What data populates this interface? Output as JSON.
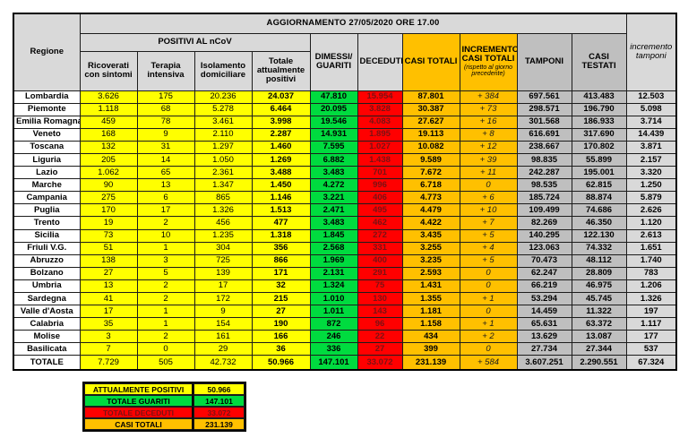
{
  "title": "AGGIORNAMENTO 27/05/2020 ORE 17.00",
  "table": {
    "header": {
      "region": "Regione",
      "positivi_group": "POSITIVI AL nCoV",
      "ricoverati": "Ricoverati con sintomi",
      "terapia": "Terapia intensiva",
      "isolamento": "Isolamento domiciliare",
      "totale_positivi": "Totale attualmente positivi",
      "dimessi": "DIMESSI/ GUARITI",
      "deceduti": "DECEDUTI",
      "casi_totali": "CASI TOTALI",
      "incremento_casi": "INCREMENTO CASI TOTALI",
      "incremento_casi_sub": "(rispetto al giorno precedente)",
      "tamponi": "TAMPONI",
      "casi_testati": "CASI TESTATI",
      "incremento_tamponi": "incremento tamponi"
    },
    "rows": [
      {
        "name": "Lombardia",
        "values": [
          "3.626",
          "175",
          "20.236",
          "24.037",
          "47.810",
          "15.954",
          "87.801",
          "+ 384",
          "697.561",
          "413.483",
          "12.503"
        ]
      },
      {
        "name": "Piemonte",
        "values": [
          "1.118",
          "68",
          "5.278",
          "6.464",
          "20.095",
          "3.828",
          "30.387",
          "+ 73",
          "298.571",
          "196.790",
          "5.098"
        ]
      },
      {
        "name": "Emilia Romagna",
        "values": [
          "459",
          "78",
          "3.461",
          "3.998",
          "19.546",
          "4.083",
          "27.627",
          "+ 16",
          "301.568",
          "186.933",
          "3.714"
        ]
      },
      {
        "name": "Veneto",
        "values": [
          "168",
          "9",
          "2.110",
          "2.287",
          "14.931",
          "1.895",
          "19.113",
          "+ 8",
          "616.691",
          "317.690",
          "14.439"
        ]
      },
      {
        "name": "Toscana",
        "values": [
          "132",
          "31",
          "1.297",
          "1.460",
          "7.595",
          "1.027",
          "10.082",
          "+ 12",
          "238.667",
          "170.802",
          "3.871"
        ]
      },
      {
        "name": "Liguria",
        "values": [
          "205",
          "14",
          "1.050",
          "1.269",
          "6.882",
          "1.438",
          "9.589",
          "+ 39",
          "98.835",
          "55.899",
          "2.157"
        ]
      },
      {
        "name": "Lazio",
        "values": [
          "1.062",
          "65",
          "2.361",
          "3.488",
          "3.483",
          "701",
          "7.672",
          "+ 11",
          "242.287",
          "195.001",
          "3.320"
        ]
      },
      {
        "name": "Marche",
        "values": [
          "90",
          "13",
          "1.347",
          "1.450",
          "4.272",
          "996",
          "6.718",
          "0",
          "98.535",
          "62.815",
          "1.250"
        ]
      },
      {
        "name": "Campania",
        "values": [
          "275",
          "6",
          "865",
          "1.146",
          "3.221",
          "406",
          "4.773",
          "+ 6",
          "185.724",
          "88.874",
          "5.879"
        ]
      },
      {
        "name": "Puglia",
        "values": [
          "170",
          "17",
          "1.326",
          "1.513",
          "2.471",
          "495",
          "4.479",
          "+ 10",
          "109.499",
          "74.686",
          "2.626"
        ]
      },
      {
        "name": "Trento",
        "values": [
          "19",
          "2",
          "456",
          "477",
          "3.483",
          "462",
          "4.422",
          "+ 7",
          "82.269",
          "46.350",
          "1.120"
        ]
      },
      {
        "name": "Sicilia",
        "values": [
          "73",
          "10",
          "1.235",
          "1.318",
          "1.845",
          "272",
          "3.435",
          "+ 5",
          "140.295",
          "122.130",
          "2.613"
        ]
      },
      {
        "name": "Friuli V.G.",
        "values": [
          "51",
          "1",
          "304",
          "356",
          "2.568",
          "331",
          "3.255",
          "+ 4",
          "123.063",
          "74.332",
          "1.651"
        ]
      },
      {
        "name": "Abruzzo",
        "values": [
          "138",
          "3",
          "725",
          "866",
          "1.969",
          "400",
          "3.235",
          "+ 5",
          "70.473",
          "48.112",
          "1.740"
        ]
      },
      {
        "name": "Bolzano",
        "values": [
          "27",
          "5",
          "139",
          "171",
          "2.131",
          "291",
          "2.593",
          "0",
          "62.247",
          "28.809",
          "783"
        ]
      },
      {
        "name": "Umbria",
        "values": [
          "13",
          "2",
          "17",
          "32",
          "1.324",
          "75",
          "1.431",
          "0",
          "66.219",
          "46.975",
          "1.206"
        ]
      },
      {
        "name": "Sardegna",
        "values": [
          "41",
          "2",
          "172",
          "215",
          "1.010",
          "130",
          "1.355",
          "+ 1",
          "53.294",
          "45.745",
          "1.326"
        ]
      },
      {
        "name": "Valle d'Aosta",
        "values": [
          "17",
          "1",
          "9",
          "27",
          "1.011",
          "143",
          "1.181",
          "0",
          "14.459",
          "11.322",
          "197"
        ]
      },
      {
        "name": "Calabria",
        "values": [
          "35",
          "1",
          "154",
          "190",
          "872",
          "96",
          "1.158",
          "+ 1",
          "65.631",
          "63.372",
          "1.117"
        ]
      },
      {
        "name": "Molise",
        "values": [
          "3",
          "2",
          "161",
          "166",
          "246",
          "22",
          "434",
          "+ 2",
          "13.629",
          "13.087",
          "177"
        ]
      },
      {
        "name": "Basilicata",
        "values": [
          "7",
          "0",
          "29",
          "36",
          "336",
          "27",
          "399",
          "0",
          "27.734",
          "27.344",
          "537"
        ]
      }
    ],
    "totals": {
      "name": "TOTALE",
      "values": [
        "7.729",
        "505",
        "42.732",
        "50.966",
        "147.101",
        "33.072",
        "231.139",
        "+ 584",
        "3.607.251",
        "2.290.551",
        "67.324"
      ]
    }
  },
  "legend": {
    "items": [
      {
        "label": "ATTUALMENTE POSITIVI",
        "value": "50.966",
        "color": "yellow"
      },
      {
        "label": "TOTALE GUARITI",
        "value": "147.101",
        "color": "green"
      },
      {
        "label": "TOTALE DECEDUTI",
        "value": "33.072",
        "color": "red"
      },
      {
        "label": "CASI TOTALI",
        "value": "231.139",
        "color": "orange"
      }
    ]
  },
  "colors": {
    "yellow": "#FFFF00",
    "green": "#00DB3F",
    "red": "#FF0000",
    "red_text": "#7B1113",
    "orange": "#FFC000",
    "gray": "#BFBFBF",
    "light_gray": "#D9D9D9"
  }
}
